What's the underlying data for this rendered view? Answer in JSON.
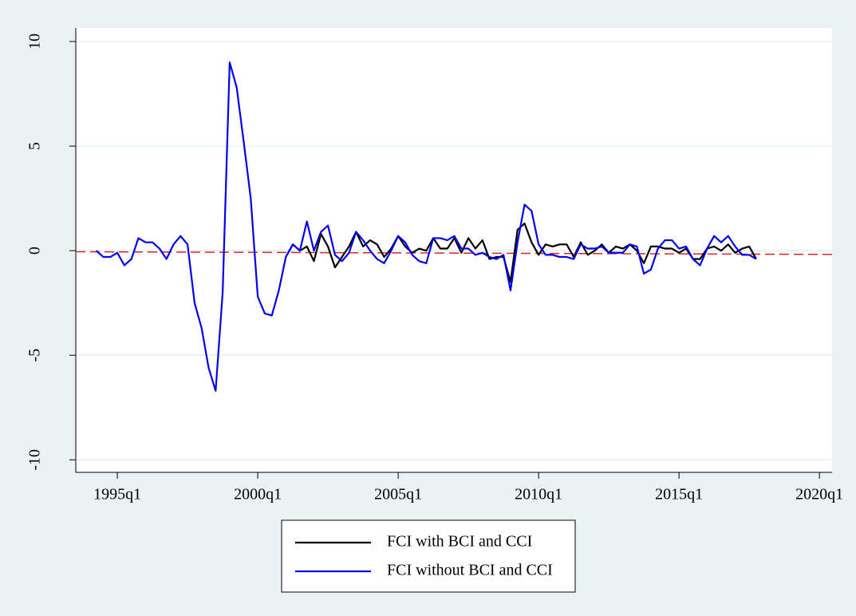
{
  "chart_data": {
    "type": "line",
    "x": [
      1994.25,
      1994.5,
      1994.75,
      1995,
      1995.25,
      1995.5,
      1995.75,
      1996,
      1996.25,
      1996.5,
      1996.75,
      1997,
      1997.25,
      1997.5,
      1997.75,
      1998,
      1998.25,
      1998.5,
      1998.75,
      1999,
      1999.25,
      1999.5,
      1999.75,
      2000,
      2000.25,
      2000.5,
      2000.75,
      2001,
      2001.25,
      2001.5,
      2001.75,
      2002,
      2002.25,
      2002.5,
      2002.75,
      2003,
      2003.25,
      2003.5,
      2003.75,
      2004,
      2004.25,
      2004.5,
      2004.75,
      2005,
      2005.25,
      2005.5,
      2005.75,
      2006,
      2006.25,
      2006.5,
      2006.75,
      2007,
      2007.25,
      2007.5,
      2007.75,
      2008,
      2008.25,
      2008.5,
      2008.75,
      2009,
      2009.25,
      2009.5,
      2009.75,
      2010,
      2010.25,
      2010.5,
      2010.75,
      2011,
      2011.25,
      2011.5,
      2011.75,
      2012,
      2012.25,
      2012.5,
      2012.75,
      2013,
      2013.25,
      2013.5,
      2013.75,
      2014,
      2014.25,
      2014.5,
      2014.75,
      2015,
      2015.25,
      2015.5,
      2015.75,
      2016,
      2016.25,
      2016.5,
      2016.75,
      2017,
      2017.25,
      2017.5,
      2017.75
    ],
    "series": [
      {
        "name": "FCI with BCI and CCI",
        "color": "#000000",
        "values": [
          null,
          null,
          null,
          null,
          null,
          null,
          null,
          null,
          null,
          null,
          null,
          null,
          null,
          null,
          null,
          null,
          null,
          null,
          null,
          null,
          null,
          null,
          null,
          null,
          null,
          null,
          null,
          -0.3,
          0.3,
          0.0,
          0.2,
          -0.5,
          0.8,
          0.2,
          -0.8,
          -0.3,
          0.2,
          0.9,
          0.2,
          0.5,
          0.3,
          -0.3,
          0.1,
          0.7,
          0.2,
          -0.1,
          0.1,
          0.0,
          0.6,
          0.1,
          0.1,
          0.6,
          -0.1,
          0.6,
          0.1,
          0.5,
          -0.4,
          -0.3,
          -0.3,
          -1.5,
          1.0,
          1.3,
          0.4,
          -0.2,
          0.3,
          0.2,
          0.3,
          0.3,
          -0.3,
          0.4,
          -0.2,
          0.0,
          0.3,
          -0.1,
          0.2,
          0.1,
          0.3,
          0.0,
          -0.6,
          0.2,
          0.2,
          0.1,
          0.1,
          -0.1,
          0.1,
          -0.4,
          -0.4,
          0.1,
          0.2,
          0.0,
          0.3,
          -0.1,
          0.1,
          0.2,
          -0.4
        ]
      },
      {
        "name": "FCI without BCI and CCI",
        "color": "#0000ee",
        "values": [
          0,
          -0.3,
          -0.3,
          -0.1,
          -0.7,
          -0.4,
          0.6,
          0.4,
          0.4,
          0.1,
          -0.4,
          0.3,
          0.7,
          0.3,
          -2.5,
          -3.7,
          -5.6,
          -6.7,
          -2.0,
          9.0,
          7.8,
          5.2,
          2.5,
          -2.2,
          -3.0,
          -3.1,
          -1.9,
          -0.3,
          0.3,
          0.0,
          1.4,
          0.0,
          0.9,
          1.2,
          -0.2,
          -0.5,
          -0.1,
          0.9,
          0.5,
          0.0,
          -0.4,
          -0.6,
          0.0,
          0.7,
          0.4,
          -0.2,
          -0.5,
          -0.6,
          0.6,
          0.6,
          0.5,
          0.7,
          0.1,
          0.1,
          -0.2,
          -0.1,
          -0.3,
          -0.4,
          -0.2,
          -1.9,
          0.4,
          2.2,
          1.9,
          0.3,
          -0.2,
          -0.2,
          -0.3,
          -0.3,
          -0.4,
          0.3,
          0.1,
          0.1,
          0.2,
          -0.1,
          -0.1,
          -0.1,
          0.3,
          0.2,
          -1.1,
          -0.9,
          0.1,
          0.5,
          0.5,
          0.1,
          0.2,
          -0.4,
          -0.7,
          0.1,
          0.7,
          0.4,
          0.7,
          0.2,
          -0.2,
          -0.2,
          -0.4
        ]
      }
    ],
    "reference_line": {
      "values": [
        -0.05,
        -0.18
      ],
      "color": "#dd2222"
    },
    "xlim": [
      1993.52,
      2020.45
    ],
    "xticks": [
      {
        "value": 1995,
        "label": "1995q1"
      },
      {
        "value": 2000,
        "label": "2000q1"
      },
      {
        "value": 2005,
        "label": "2005q1"
      },
      {
        "value": 2010,
        "label": "2010q1"
      },
      {
        "value": 2015,
        "label": "2015q1"
      },
      {
        "value": 2020,
        "label": "2020q1"
      }
    ],
    "ylim": [
      -10.6,
      10.65
    ],
    "yticks": [
      -10,
      -5,
      0,
      5,
      10
    ],
    "grid": true
  }
}
